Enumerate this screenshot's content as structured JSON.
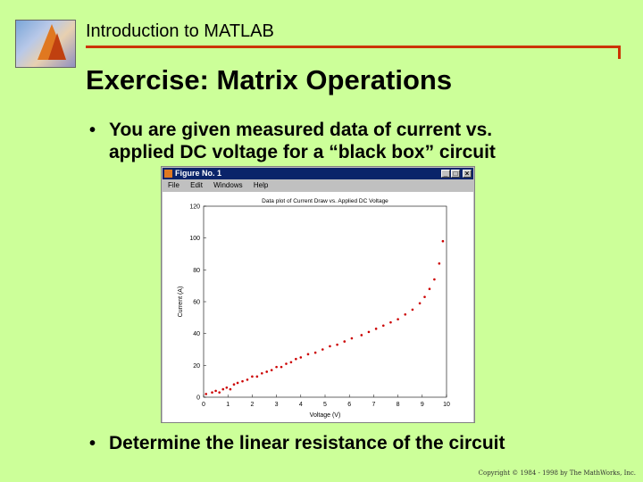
{
  "header": {
    "title": "Introduction to MATLAB",
    "rule_color": "#cc3300"
  },
  "slide": {
    "title": "Exercise: Matrix Operations",
    "bullets": [
      {
        "marker": "•",
        "line1": "You are given measured data of current vs.",
        "line2": "applied DC voltage for a “black box” circuit"
      },
      {
        "marker": "•",
        "line1": "Determine the linear resistance of the circuit"
      }
    ]
  },
  "figure_window": {
    "title": "Figure No. 1",
    "menu": [
      "File",
      "Edit",
      "Windows",
      "Help"
    ],
    "buttons": [
      "_",
      "□",
      "×"
    ]
  },
  "chart_data": {
    "type": "scatter",
    "title": "Data plot of Current Draw vs. Applied DC Voltage",
    "xlabel": "Voltage (V)",
    "ylabel": "Current (A)",
    "xlim": [
      0,
      10
    ],
    "ylim": [
      0,
      120
    ],
    "xticks": [
      0,
      1,
      2,
      3,
      4,
      5,
      6,
      7,
      8,
      9,
      10
    ],
    "yticks": [
      0,
      20,
      40,
      60,
      80,
      100,
      120
    ],
    "grid": false,
    "marker_color": "#cc0000",
    "series": [
      {
        "x": [
          0.1,
          0.35,
          0.5,
          0.65,
          0.8,
          0.95,
          1.1,
          1.25,
          1.4,
          1.6,
          1.8,
          2.0,
          2.2,
          2.4,
          2.6,
          2.8,
          3.0,
          3.2,
          3.4,
          3.6,
          3.8,
          4.0,
          4.3,
          4.6,
          4.9,
          5.2,
          5.5,
          5.8,
          6.1,
          6.5,
          6.8,
          7.1,
          7.4,
          7.7,
          8.0,
          8.3,
          8.6,
          8.9,
          9.1,
          9.3,
          9.5,
          9.7,
          9.85
        ],
        "y": [
          2,
          3,
          4,
          3,
          5,
          6,
          5,
          8,
          9,
          10,
          11,
          13,
          13,
          15,
          16,
          17,
          19,
          19,
          21,
          22,
          24,
          25,
          27,
          28,
          30,
          32,
          33,
          35,
          37,
          39,
          41,
          43,
          45,
          47,
          49,
          52,
          55,
          59,
          63,
          68,
          74,
          84,
          98
        ]
      }
    ]
  },
  "copyright": "Copyright © 1984 - 1998 by The MathWorks, Inc."
}
